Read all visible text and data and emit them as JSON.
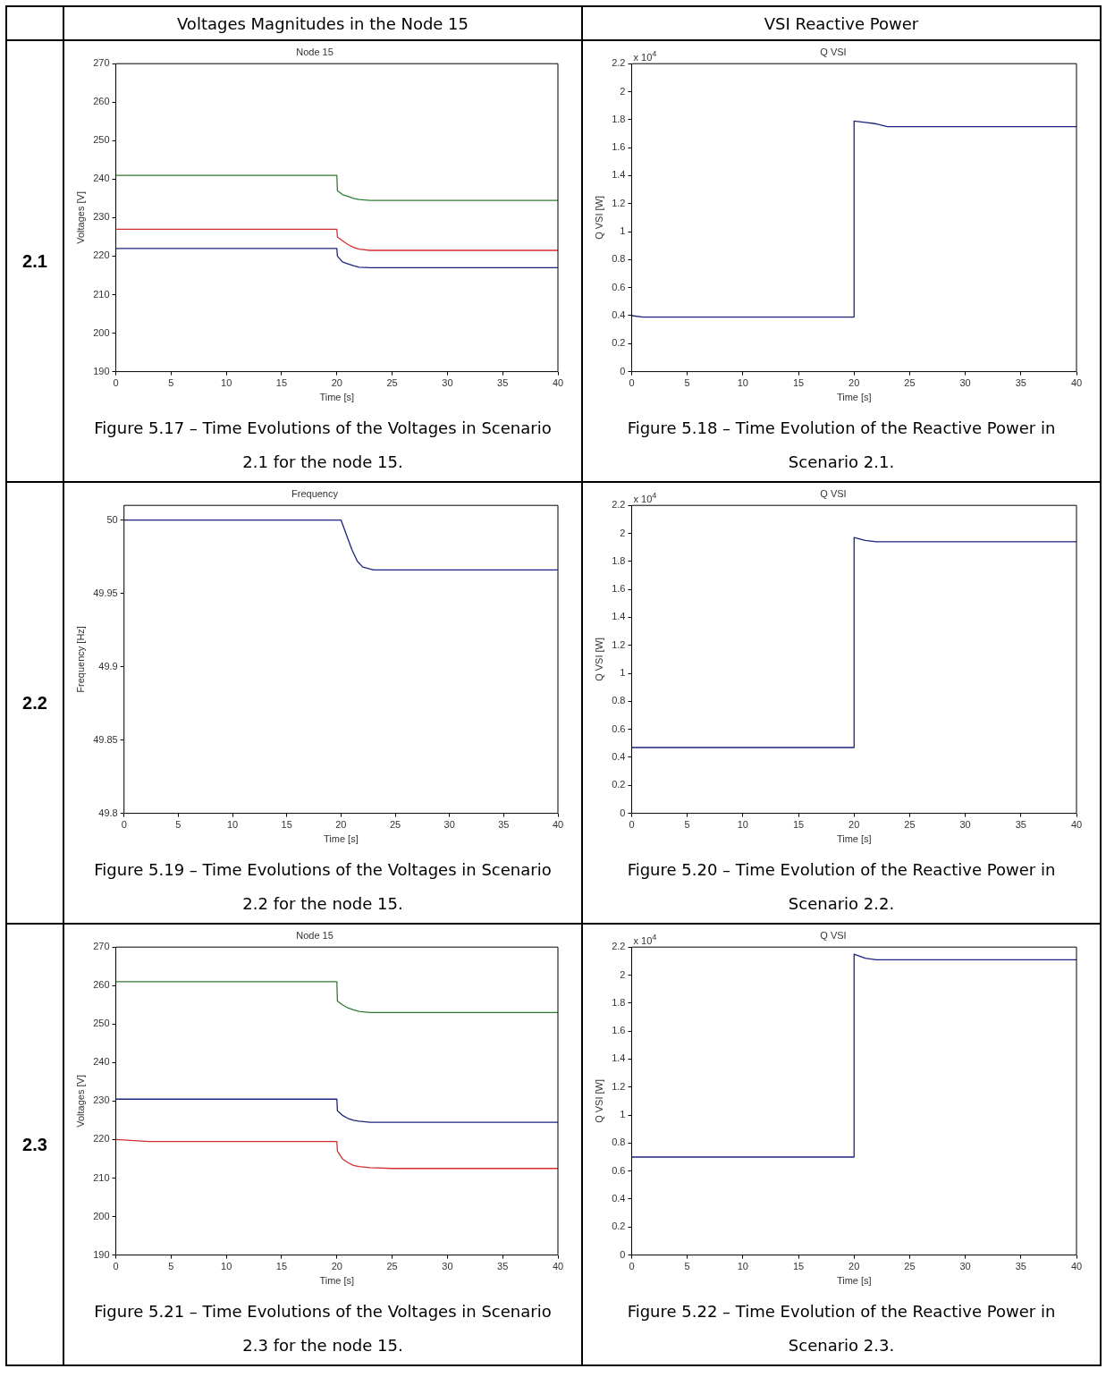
{
  "chart_data": [
    {
      "type": "other",
      "annotations": [
        "Voltages Magnitudes in the Node 15",
        "VSI Reactive Power",
        "2.1",
        "2.2",
        "2.3"
      ]
    },
    {
      "type": "line",
      "title": "Node 15",
      "xlabel": "Time [s]",
      "ylabel": "Voltages [V]",
      "annotations": [
        "Figure 5.17 – Time Evolutions of the Voltages in Scenario 2.1 for the node 15."
      ],
      "xlim": [
        0,
        40
      ],
      "xticks": [
        0,
        5,
        10,
        15,
        20,
        25,
        30,
        35,
        40
      ],
      "ylim": [
        190,
        270
      ],
      "yticks": [
        190,
        200,
        210,
        220,
        230,
        240,
        250,
        260,
        270
      ],
      "grid": false,
      "legend": false,
      "series": [
        {
          "color": "#2e7d32",
          "x": [
            0,
            20,
            20.05,
            20.5,
            21,
            21.5,
            22,
            23,
            25,
            40
          ],
          "values": [
            241,
            241,
            237,
            236,
            235.5,
            235,
            234.7,
            234.5,
            234.5,
            234.5
          ]
        },
        {
          "color": "#d32f2f",
          "x": [
            0,
            20,
            20.05,
            20.5,
            21,
            21.5,
            22,
            23,
            25,
            40
          ],
          "values": [
            227,
            227,
            225,
            224,
            223,
            222.3,
            221.8,
            221.5,
            221.5,
            221.5
          ]
        },
        {
          "color": "#1a237e",
          "x": [
            0,
            20,
            20.05,
            20.5,
            21,
            21.5,
            22,
            23,
            25,
            40
          ],
          "values": [
            222,
            222,
            220,
            218.5,
            218,
            217.5,
            217.1,
            217,
            217,
            217
          ]
        }
      ]
    },
    {
      "type": "line",
      "title": "Q VSI",
      "xlabel": "Time [s]",
      "ylabel": "Q VSI [W]",
      "annotations": [
        "Figure 5.18 – Time Evolution of the Reactive Power in Scenario 2.1.",
        "x 10$^{4}$"
      ],
      "xlim": [
        0,
        40
      ],
      "xticks": [
        0,
        5,
        10,
        15,
        20,
        25,
        30,
        35,
        40
      ],
      "ylim": [
        0,
        2.2
      ],
      "yticks": [
        0,
        0.2,
        0.4,
        0.6,
        0.8,
        1,
        1.2,
        1.4,
        1.6,
        1.8,
        2,
        2.2
      ],
      "grid": false,
      "legend": false,
      "series": [
        {
          "color": "#1a237e",
          "x": [
            0,
            1,
            2,
            20,
            20,
            21,
            22,
            23,
            40
          ],
          "values": [
            0.4,
            0.39,
            0.39,
            0.39,
            1.79,
            1.78,
            1.77,
            1.75,
            1.75
          ]
        }
      ]
    },
    {
      "type": "line",
      "title": "Frequency",
      "xlabel": "Time [s]",
      "ylabel": "Frequency [Hz]",
      "annotations": [
        "Figure 5.19 – Time Evolutions of the Voltages in Scenario 2.2 for the node 15."
      ],
      "xlim": [
        0,
        40
      ],
      "xticks": [
        0,
        5,
        10,
        15,
        20,
        25,
        30,
        35,
        40
      ],
      "ylim": [
        49.8,
        50.01
      ],
      "yticks": [
        49.8,
        49.85,
        49.9,
        49.95,
        50
      ],
      "grid": false,
      "legend": false,
      "series": [
        {
          "color": "#1a237e",
          "x": [
            0,
            20,
            20.5,
            21,
            21.5,
            22,
            23,
            25,
            40
          ],
          "values": [
            50,
            50,
            49.99,
            49.98,
            49.972,
            49.968,
            49.966,
            49.966,
            49.966
          ]
        }
      ]
    },
    {
      "type": "line",
      "title": "Q VSI",
      "xlabel": "Time [s]",
      "ylabel": "Q VSI [W]",
      "annotations": [
        "Figure 5.20 – Time Evolution of the Reactive Power in Scenario 2.2.",
        "x 10$^{4}$"
      ],
      "xlim": [
        0,
        40
      ],
      "xticks": [
        0,
        5,
        10,
        15,
        20,
        25,
        30,
        35,
        40
      ],
      "ylim": [
        0,
        2.2
      ],
      "yticks": [
        0,
        0.2,
        0.4,
        0.6,
        0.8,
        1,
        1.2,
        1.4,
        1.6,
        1.8,
        2,
        2.2
      ],
      "grid": false,
      "legend": false,
      "series": [
        {
          "color": "#1a237e",
          "x": [
            0,
            20,
            20,
            21,
            22,
            40
          ],
          "values": [
            0.47,
            0.47,
            1.97,
            1.95,
            1.94,
            1.94
          ]
        }
      ]
    },
    {
      "type": "line",
      "title": "Node 15",
      "xlabel": "Time [s]",
      "ylabel": "Voltages [V]",
      "annotations": [
        "Figure 5.21 – Time Evolutions of the Voltages in Scenario 2.3 for the node 15."
      ],
      "xlim": [
        0,
        40
      ],
      "xticks": [
        0,
        5,
        10,
        15,
        20,
        25,
        30,
        35,
        40
      ],
      "ylim": [
        190,
        270
      ],
      "yticks": [
        190,
        200,
        210,
        220,
        230,
        240,
        250,
        260,
        270
      ],
      "grid": false,
      "legend": false,
      "series": [
        {
          "color": "#2e7d32",
          "x": [
            0,
            20,
            20.05,
            20.5,
            21,
            21.5,
            22,
            23,
            25,
            40
          ],
          "values": [
            261,
            261,
            256,
            255,
            254.2,
            253.7,
            253.3,
            253,
            253,
            253
          ]
        },
        {
          "color": "#1a237e",
          "x": [
            0,
            20,
            20.05,
            20.5,
            21,
            21.5,
            22,
            23,
            25,
            40
          ],
          "values": [
            230.5,
            230.5,
            227.5,
            226.3,
            225.5,
            225,
            224.8,
            224.5,
            224.5,
            224.5
          ]
        },
        {
          "color": "#d32f2f",
          "x": [
            0,
            3,
            20,
            20.05,
            20.5,
            21,
            21.5,
            22,
            23,
            25,
            40
          ],
          "values": [
            220,
            219.5,
            219.5,
            217,
            215,
            214,
            213.3,
            213,
            212.7,
            212.5,
            212.5
          ]
        }
      ]
    },
    {
      "type": "line",
      "title": "Q VSI",
      "xlabel": "Time [s]",
      "ylabel": "Q VSI [W]",
      "annotations": [
        "Figure 5.22 – Time Evolution of the Reactive Power in Scenario 2.3.",
        "x 10$^{4}$"
      ],
      "xlim": [
        0,
        40
      ],
      "xticks": [
        0,
        5,
        10,
        15,
        20,
        25,
        30,
        35,
        40
      ],
      "ylim": [
        0,
        2.2
      ],
      "yticks": [
        0,
        0.2,
        0.4,
        0.6,
        0.8,
        1,
        1.2,
        1.4,
        1.6,
        1.8,
        2,
        2.2
      ],
      "grid": false,
      "legend": false,
      "series": [
        {
          "color": "#1a237e",
          "x": [
            0,
            19.8,
            20,
            20,
            21,
            22,
            40
          ],
          "values": [
            0.7,
            0.7,
            0.7,
            2.15,
            2.12,
            2.11,
            2.11
          ]
        }
      ]
    }
  ]
}
